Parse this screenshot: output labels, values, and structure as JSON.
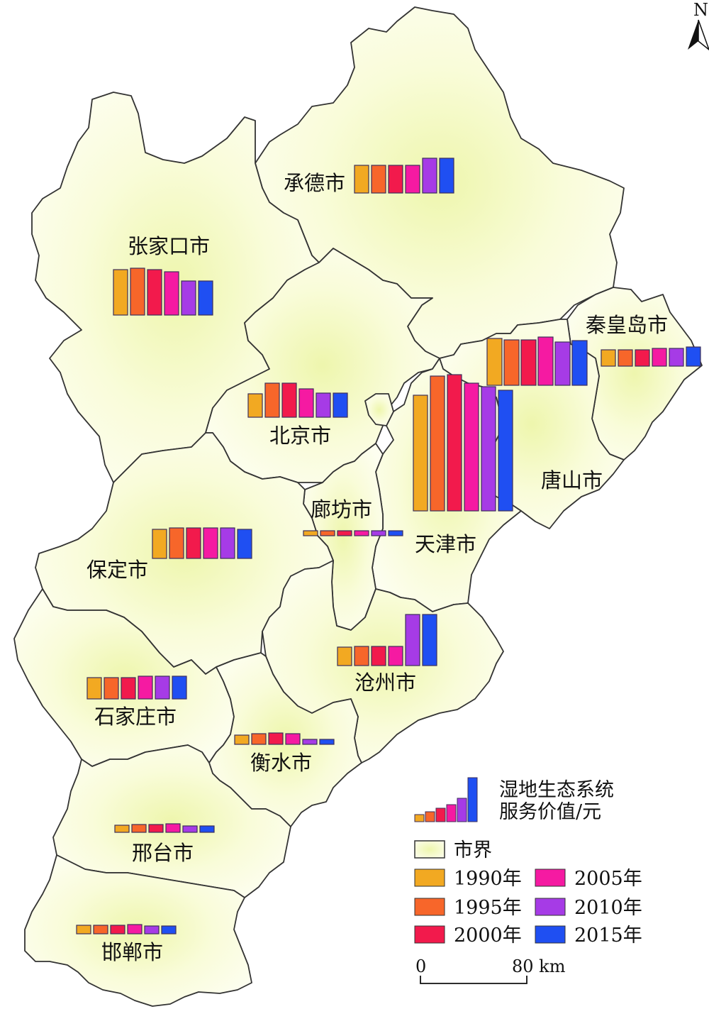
{
  "north_arrow": {
    "label": "N",
    "icon": "north-arrow-icon"
  },
  "colors": {
    "region_fill": "#fbfde0",
    "region_center": "#f1f7b8",
    "boundary": "#333333",
    "bar_border": "#3d2f5a",
    "series": [
      "#f2a922",
      "#f7662a",
      "#f21a4c",
      "#f51aa2",
      "#a63be6",
      "#1f4ff2"
    ]
  },
  "cities": [
    {
      "id": "chengde",
      "name": "承德市"
    },
    {
      "id": "zhangjiakou",
      "name": "张家口市"
    },
    {
      "id": "qinhuangdao",
      "name": "秦皇岛市"
    },
    {
      "id": "beijing",
      "name": "北京市"
    },
    {
      "id": "tangshan",
      "name": "唐山市"
    },
    {
      "id": "langfang",
      "name": "廊坊市"
    },
    {
      "id": "tianjin",
      "name": "天津市"
    },
    {
      "id": "baoding",
      "name": "保定市"
    },
    {
      "id": "cangzhou",
      "name": "沧州市"
    },
    {
      "id": "shijiazhuang",
      "name": "石家庄市"
    },
    {
      "id": "hengshui",
      "name": "衡水市"
    },
    {
      "id": "xingtai",
      "name": "邢台市"
    },
    {
      "id": "handan",
      "name": "邯郸市"
    }
  ],
  "chart_data": {
    "type": "bar",
    "categories": [
      "1990年",
      "1995年",
      "2000年",
      "2005年",
      "2010年",
      "2015年"
    ],
    "note_unit": "relative bar height",
    "series": [
      {
        "city": "承德市",
        "values": [
          39,
          39,
          39,
          39,
          49,
          49
        ]
      },
      {
        "city": "张家口市",
        "values": [
          64,
          66,
          64,
          61,
          48,
          48
        ]
      },
      {
        "city": "秦皇岛市",
        "values": [
          23,
          23,
          23,
          25,
          25,
          27
        ]
      },
      {
        "city": "北京市",
        "values": [
          33,
          48,
          48,
          40,
          34,
          34
        ]
      },
      {
        "city": "唐山市",
        "values": [
          66,
          64,
          64,
          68,
          61,
          63
        ]
      },
      {
        "city": "天津市",
        "values": [
          163,
          190,
          192,
          180,
          175,
          170
        ]
      },
      {
        "city": "廊坊市",
        "values": [
          7,
          7,
          7,
          7,
          7,
          7
        ]
      },
      {
        "city": "保定市",
        "values": [
          41,
          43,
          43,
          43,
          43,
          41
        ]
      },
      {
        "city": "沧州市",
        "values": [
          26,
          27,
          27,
          27,
          72,
          72
        ]
      },
      {
        "city": "石家庄市",
        "values": [
          30,
          30,
          30,
          32,
          32,
          32
        ]
      },
      {
        "city": "衡水市",
        "values": [
          13,
          15,
          16,
          15,
          7,
          7
        ]
      },
      {
        "city": "邢台市",
        "values": [
          10,
          11,
          11,
          12,
          9,
          9
        ]
      },
      {
        "city": "邯郸市",
        "values": [
          12,
          12,
          12,
          13,
          11,
          11
        ]
      }
    ]
  },
  "legend": {
    "title_line1": "湿地生态系统",
    "title_line2": "服务价值/元",
    "boundary_label": "市界",
    "items": [
      {
        "label": "1990年",
        "color": "#f2a922"
      },
      {
        "label": "1995年",
        "color": "#f7662a"
      },
      {
        "label": "2000年",
        "color": "#f21a4c"
      },
      {
        "label": "2005年",
        "color": "#f51aa2"
      },
      {
        "label": "2010年",
        "color": "#a63be6"
      },
      {
        "label": "2015年",
        "color": "#1f4ff2"
      }
    ]
  },
  "scale_bar": {
    "start": "0",
    "end": "80 km"
  }
}
